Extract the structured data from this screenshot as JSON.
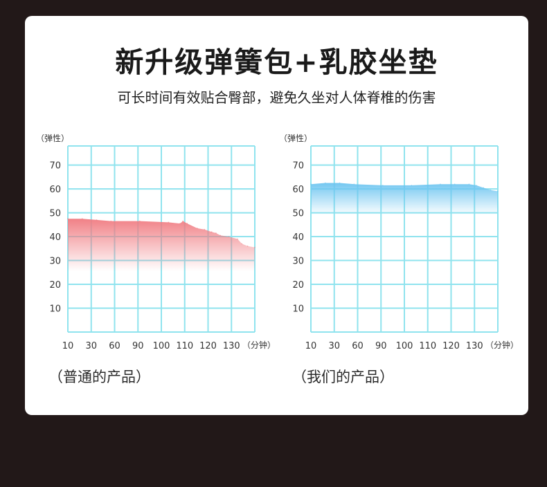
{
  "header": {
    "title": "新升级弹簧包+乳胶坐垫",
    "subtitle": "可长时间有效贴合臀部，避免久坐对人体脊椎的伤害"
  },
  "colors": {
    "grid": "#8fe3ee",
    "ordinary_fill": "#f07a80",
    "ours_fill": "#6cc4f0"
  },
  "chart_data": [
    {
      "type": "area",
      "title": "",
      "ylabel": "（弹性）",
      "xlabel": "（分钟）",
      "y_ticks": [
        70,
        60,
        50,
        40,
        30,
        20,
        10
      ],
      "x_ticks": [
        10,
        30,
        60,
        90,
        100,
        110,
        120,
        130
      ],
      "ylim": [
        0,
        78
      ],
      "caption": "（普通的产品）",
      "series": [
        {
          "name": "",
          "x": [
            10,
            20,
            30,
            40,
            60,
            80,
            88,
            90,
            93,
            100,
            105,
            110,
            113,
            116,
            122,
            128,
            131,
            135,
            140
          ],
          "values": [
            47.5,
            47.5,
            47,
            46.5,
            46.5,
            46,
            45.5,
            46.5,
            45.5,
            43.5,
            43,
            42,
            41.5,
            40.5,
            40,
            39,
            37,
            36,
            35.5
          ]
        }
      ]
    },
    {
      "type": "area",
      "title": "",
      "ylabel": "（弹性）",
      "xlabel": "（分钟）",
      "y_ticks": [
        70,
        60,
        50,
        40,
        30,
        20,
        10
      ],
      "x_ticks": [
        10,
        30,
        60,
        90,
        100,
        110,
        120,
        130
      ],
      "ylim": [
        0,
        78
      ],
      "caption": "（我们的产品）",
      "series": [
        {
          "name": "",
          "x": [
            10,
            20,
            30,
            40,
            60,
            80,
            100,
            110,
            120,
            125,
            130,
            135,
            140
          ],
          "values": [
            62,
            62.5,
            62.5,
            62,
            61.5,
            61.5,
            62,
            62,
            62,
            61.5,
            60.5,
            59.5,
            59
          ]
        }
      ]
    }
  ]
}
